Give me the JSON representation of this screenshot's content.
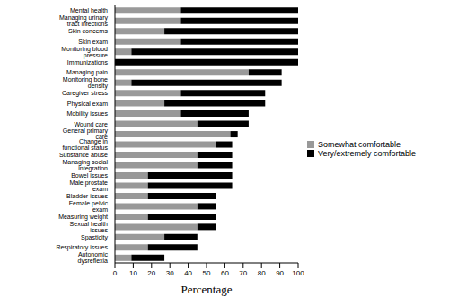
{
  "chart_data": {
    "type": "bar",
    "orientation": "horizontal",
    "stacked": true,
    "grid": false,
    "legend": "right",
    "xlabel": "Percentage",
    "categories": [
      "Mental health",
      "Managing urinary tract infections",
      "Skin concerns",
      "Skin exam",
      "Monitoring blood pressure",
      "Immunizations",
      "Managing pain",
      "Monitoring bone density",
      "Caregiver stress",
      "Physical exam",
      "Mobility issues",
      "Wound care",
      "General primary care",
      "Change in functional status",
      "Substance abuse",
      "Managing social integration",
      "Bowel issues",
      "Male prostate exam",
      "Bladder issues",
      "Female pelvic exam",
      "Measuring weight",
      "Sexual health issues",
      "Spasticity",
      "Respiratory issues",
      "Autonomic dysreflexia"
    ],
    "series": [
      {
        "name": "Somewhat comfortable",
        "color": "#999999",
        "values": [
          36,
          36,
          27,
          36,
          9,
          0,
          73,
          9,
          36,
          27,
          36,
          45,
          63,
          55,
          45,
          45,
          18,
          18,
          18,
          45,
          18,
          45,
          27,
          18,
          9
        ]
      },
      {
        "name": "Very/extremely comfortable",
        "color": "#000000",
        "values": [
          64,
          64,
          73,
          64,
          91,
          100,
          18,
          82,
          46,
          55,
          37,
          28,
          4,
          9,
          19,
          19,
          46,
          46,
          37,
          10,
          37,
          10,
          18,
          27,
          18
        ]
      }
    ],
    "xlim": [
      0,
      100
    ],
    "xticks": [
      0,
      10,
      20,
      30,
      40,
      50,
      60,
      70,
      80,
      90,
      100
    ]
  }
}
